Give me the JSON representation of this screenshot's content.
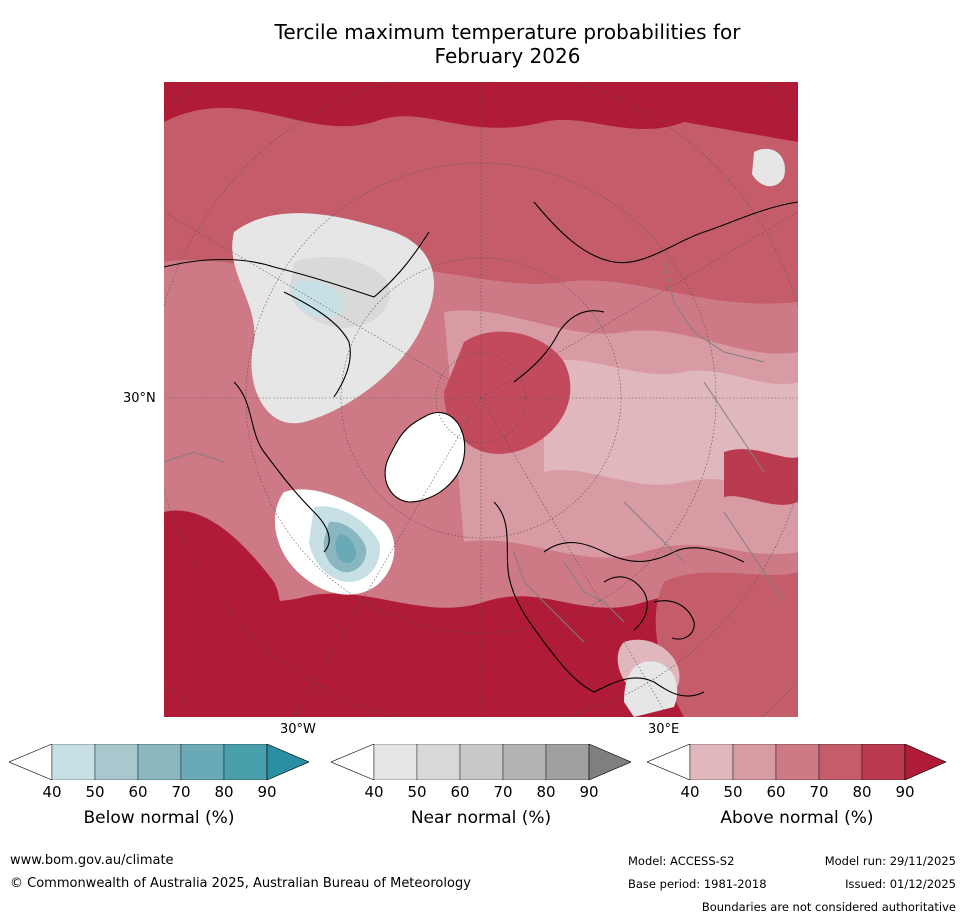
{
  "title_line1": "Tercile maximum temperature probabilities for",
  "title_line2": "February 2026",
  "axis_labels": {
    "lat_30n": "30°N",
    "lon_30w": "30°W",
    "lon_30e": "30°E"
  },
  "colors": {
    "ocean_above": "#c24a5c",
    "above_40": "#e0b7bd",
    "above_50": "#d89aa3",
    "above_60": "#cd7a86",
    "above_70": "#c45c6a",
    "above_80": "#ba3a4f",
    "above_90": "#b01c37",
    "near_40": "#e6e6e6",
    "near_50": "#d9d9d9",
    "near_60": "#c8c8c8",
    "near_70": "#b3b3b3",
    "near_80": "#9f9f9f",
    "near_90": "#7f7f7f",
    "below_40": "#c7e0e6",
    "below_50": "#a8c8ce",
    "below_60": "#8ab6c0",
    "below_70": "#6aaab6",
    "below_80": "#4a9fad",
    "below_90": "#2a8fa3",
    "coastline": "#000000",
    "boundary": "#808080"
  },
  "colorbars": [
    {
      "title": "Below normal (%)",
      "ticks": [
        "40",
        "50",
        "60",
        "70",
        "80",
        "90"
      ]
    },
    {
      "title": "Near normal (%)",
      "ticks": [
        "40",
        "50",
        "60",
        "70",
        "80",
        "90"
      ]
    },
    {
      "title": "Above normal (%)",
      "ticks": [
        "40",
        "50",
        "60",
        "70",
        "80",
        "90"
      ]
    }
  ],
  "footer": {
    "website": "www.bom.gov.au/climate",
    "copyright": "© Commonwealth of Australia 2025, Australian Bureau of Meteorology",
    "model": "Model: ACCESS-S2",
    "model_run": "Model run: 29/11/2025",
    "base_period": "Base period: 1981-2018",
    "issued": "Issued: 01/12/2025",
    "disclaimer": "Boundaries are not considered authoritative"
  }
}
